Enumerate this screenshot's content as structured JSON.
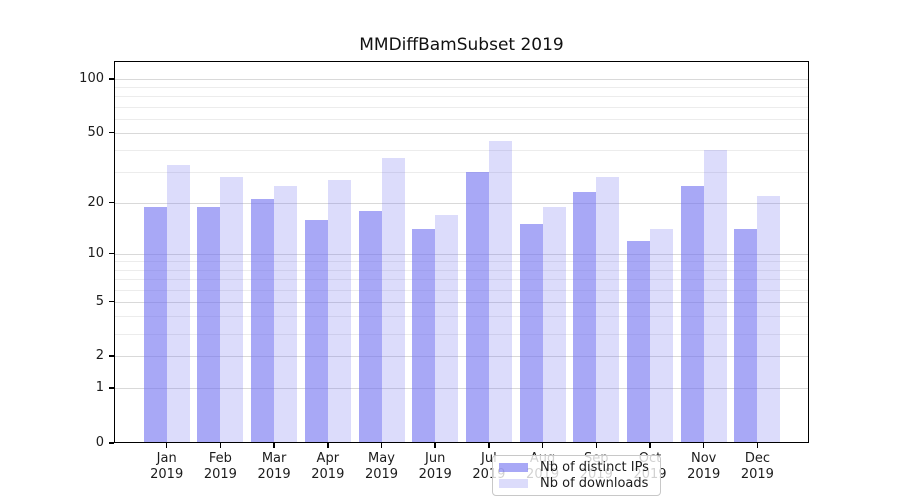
{
  "chart_data": {
    "type": "bar",
    "title": "MMDiffBamSubset 2019",
    "categories": [
      "Jan",
      "Feb",
      "Mar",
      "Apr",
      "May",
      "Jun",
      "Jul",
      "Aug",
      "Sep",
      "Oct",
      "Nov",
      "Dec"
    ],
    "category_sublabel": "2019",
    "series": [
      {
        "name": "Nb of distinct IPs",
        "color": "rgba(110,110,240,0.60)",
        "values": [
          19,
          19,
          21,
          16,
          18,
          14,
          30,
          15,
          23,
          12,
          25,
          14
        ]
      },
      {
        "name": "Nb of downloads",
        "color": "rgba(110,110,240,0.24)",
        "values": [
          33,
          28,
          25,
          27,
          36,
          17,
          45,
          19,
          28,
          14,
          40,
          22
        ]
      }
    ],
    "yscale": "log1p",
    "ylim": [
      0,
      127
    ],
    "y_tick_labels": [
      "100",
      "50",
      "20",
      "10",
      "5",
      "2",
      "1",
      "0"
    ],
    "y_tick_values": [
      100,
      50,
      20,
      10,
      5,
      2,
      1,
      0
    ],
    "y_gridlines_major": [
      1,
      2,
      5,
      10,
      20,
      50,
      100
    ],
    "y_gridlines_minor": [
      3,
      4,
      6,
      7,
      8,
      9,
      30,
      40,
      60,
      70,
      80,
      90
    ],
    "grid": true,
    "legend_position": "lower center (inside plot)",
    "colors": {
      "axis": "#000000",
      "grid_major": "#d9d9d9",
      "grid_minor": "#ececec",
      "text": "#1c1c1c"
    }
  }
}
